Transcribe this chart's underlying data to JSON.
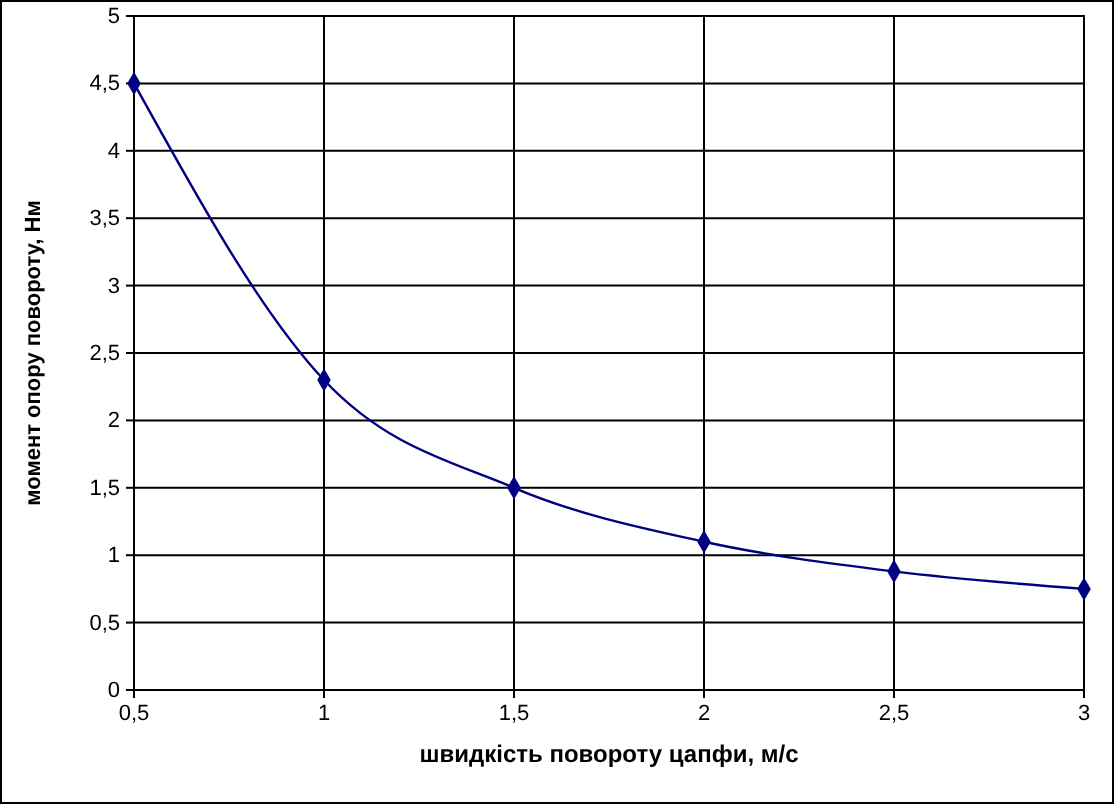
{
  "chart_data": {
    "type": "line",
    "xlabel": "швидкість повороту цапфи, м/с",
    "ylabel": "момент опору повороту, Нм",
    "x": [
      0.5,
      1,
      1.5,
      2,
      2.5,
      3
    ],
    "series": [
      {
        "color": "#000080",
        "values": [
          4.5,
          2.3,
          1.5,
          1.1,
          0.88,
          0.75
        ]
      }
    ],
    "xlim": [
      0.5,
      3
    ],
    "xticks": [
      {
        "value": 0.5,
        "label": "0,5"
      },
      1,
      {
        "value": 1.5,
        "label": "1,5"
      },
      2,
      {
        "value": 2.5,
        "label": "2,5"
      },
      3
    ],
    "ylim": [
      0,
      5
    ],
    "yticks": [
      0,
      {
        "value": 0.5,
        "label": "0,5"
      },
      1,
      {
        "value": 1.5,
        "label": "1,5"
      },
      2,
      {
        "value": 2.5,
        "label": "2,5"
      },
      3,
      {
        "value": 3.5,
        "label": "3,5"
      },
      4,
      {
        "value": 4.5,
        "label": "4,5"
      },
      5
    ],
    "grid": true,
    "marker": "diamond",
    "line_style": "solid"
  }
}
